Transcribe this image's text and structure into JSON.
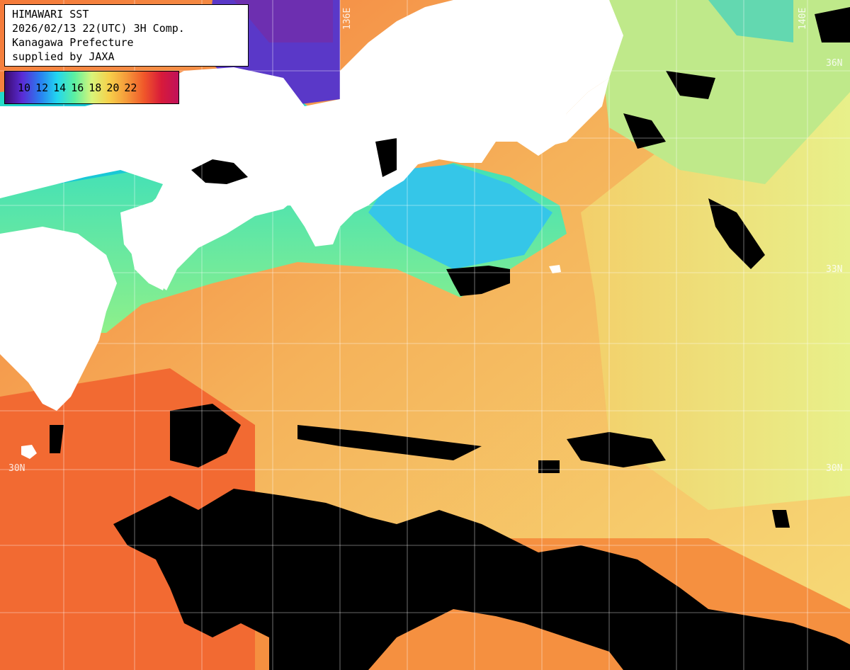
{
  "info": {
    "line1": "HIMAWARI SST",
    "line2": "2026/02/13 22(UTC) 3H Comp.",
    "line3": "Kanagawa Prefecture",
    "line4": "supplied by JAXA"
  },
  "legend": {
    "ticks": [
      "10",
      "12",
      "14",
      "16",
      "18",
      "20",
      "22"
    ],
    "colors": [
      "#3b0b6e",
      "#5a2bd6",
      "#2a7cf0",
      "#22d6f0",
      "#5cf0a0",
      "#d8f57a",
      "#f7d04a",
      "#f59a3a",
      "#f0582a",
      "#d81b3a",
      "#c0105a"
    ]
  },
  "grid_labels": {
    "lat_36": "36N",
    "lat_33": "33N",
    "lat_30": "30N",
    "lon_136": "136E",
    "lon_140": "140E"
  },
  "colors": {
    "land": "#ffffff",
    "cloud_mask": "#000000",
    "grid": "#ffffff"
  }
}
